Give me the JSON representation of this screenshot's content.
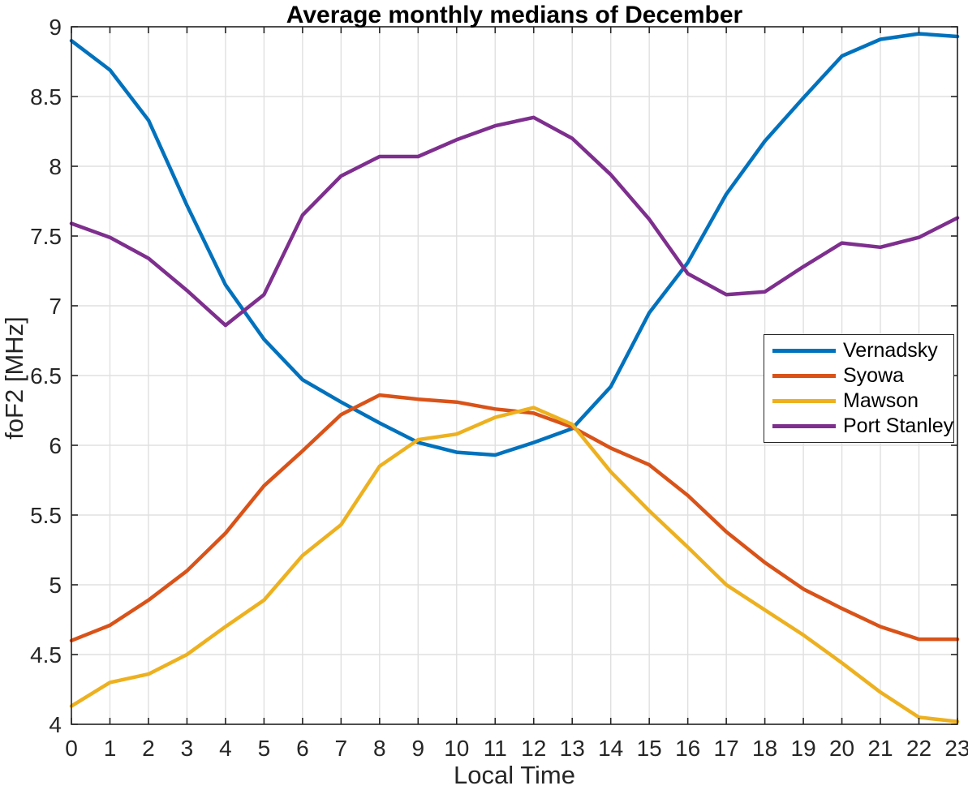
{
  "figure": {
    "title": "Average monthly medians of December",
    "xlabel": "Local Time",
    "ylabel": "foF2 [MHz]"
  },
  "chart_data": {
    "type": "line",
    "title": "Average monthly medians of December",
    "xlabel": "Local Time",
    "ylabel": "foF2 [MHz]",
    "x": [
      0,
      1,
      2,
      3,
      4,
      5,
      6,
      7,
      8,
      9,
      10,
      11,
      12,
      13,
      14,
      15,
      16,
      17,
      18,
      19,
      20,
      21,
      22,
      23
    ],
    "xlim": [
      0,
      23
    ],
    "ylim": [
      4,
      9
    ],
    "xticks": [
      0,
      1,
      2,
      3,
      4,
      5,
      6,
      7,
      8,
      9,
      10,
      11,
      12,
      13,
      14,
      15,
      16,
      17,
      18,
      19,
      20,
      21,
      22,
      23
    ],
    "yticks": [
      4,
      4.5,
      5,
      5.5,
      6,
      6.5,
      7,
      7.5,
      8,
      8.5,
      9
    ],
    "grid": true,
    "axis_color": "#262626",
    "grid_color": "#e0e0e0",
    "background": "#ffffff",
    "line_width": 4.5,
    "legend": {
      "position": "inside-right",
      "entries": [
        "Vernadsky",
        "Syowa",
        "Mawson",
        "Port Stanley"
      ]
    },
    "series": [
      {
        "name": "Vernadsky",
        "color": "#0072BD",
        "values": [
          8.9,
          8.69,
          8.33,
          7.72,
          7.15,
          6.76,
          6.47,
          6.31,
          6.16,
          6.02,
          5.95,
          5.93,
          6.02,
          6.12,
          6.42,
          6.95,
          7.31,
          7.8,
          8.18,
          8.49,
          8.79,
          8.91,
          8.95,
          8.93
        ]
      },
      {
        "name": "Syowa",
        "color": "#D95319",
        "values": [
          4.6,
          4.71,
          4.89,
          5.1,
          5.37,
          5.71,
          5.96,
          6.22,
          6.36,
          6.33,
          6.31,
          6.26,
          6.23,
          6.13,
          5.98,
          5.86,
          5.64,
          5.38,
          5.16,
          4.97,
          4.83,
          4.7,
          4.61,
          4.61
        ]
      },
      {
        "name": "Mawson",
        "color": "#EDB120",
        "values": [
          4.13,
          4.3,
          4.36,
          4.5,
          4.7,
          4.89,
          5.21,
          5.43,
          5.85,
          6.04,
          6.08,
          6.2,
          6.27,
          6.15,
          5.81,
          5.53,
          5.27,
          5.0,
          4.82,
          4.64,
          4.44,
          4.23,
          4.05,
          4.02
        ]
      },
      {
        "name": "Port Stanley",
        "color": "#7E2F8E",
        "values": [
          7.59,
          7.49,
          7.34,
          7.11,
          6.86,
          7.08,
          7.65,
          7.93,
          8.07,
          8.07,
          8.19,
          8.29,
          8.35,
          8.2,
          7.94,
          7.62,
          7.23,
          7.08,
          7.1,
          7.28,
          7.45,
          7.42,
          7.49,
          7.63
        ]
      }
    ]
  }
}
